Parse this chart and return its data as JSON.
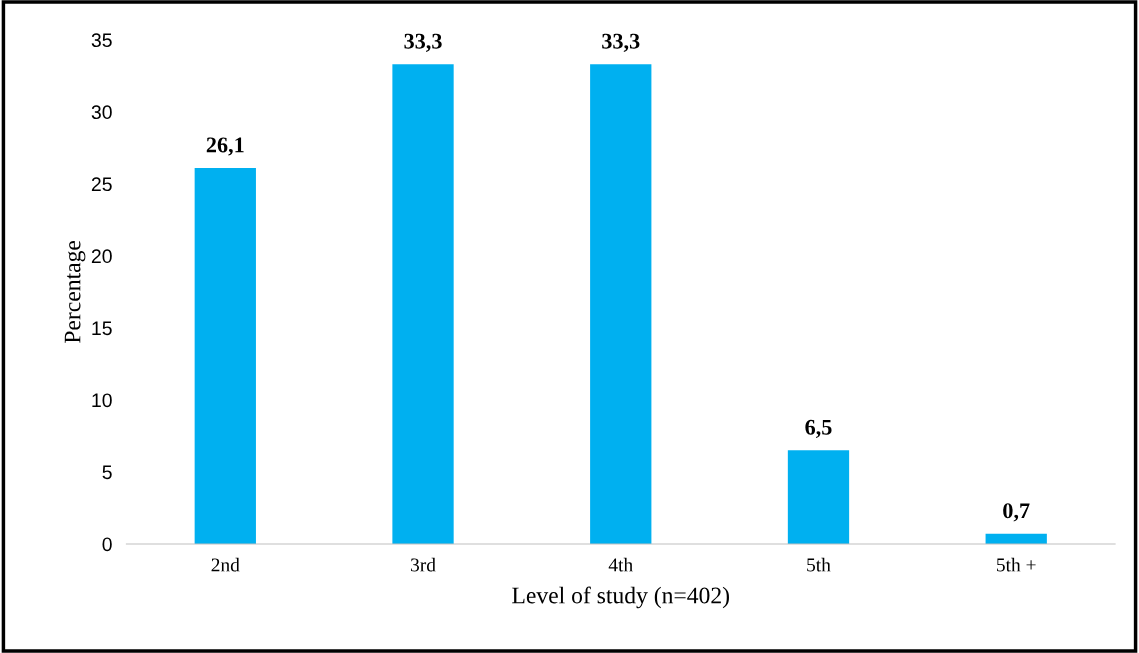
{
  "chart_data": {
    "type": "bar",
    "xlabel": "Level of study (n=402)",
    "ylabel": "Percentage",
    "categories": [
      "2nd",
      "3rd",
      "4th",
      "5th",
      "5th +"
    ],
    "values": [
      26.1,
      33.3,
      33.3,
      6.5,
      0.7
    ],
    "value_labels": [
      "26,1",
      "33,3",
      "33,3",
      "6,5",
      "0,7"
    ],
    "color": "#00b0f0",
    "ylim": [
      0,
      35
    ],
    "yticks": [
      0,
      5,
      10,
      15,
      20,
      25,
      30,
      35
    ],
    "grid": false,
    "legend": false
  }
}
